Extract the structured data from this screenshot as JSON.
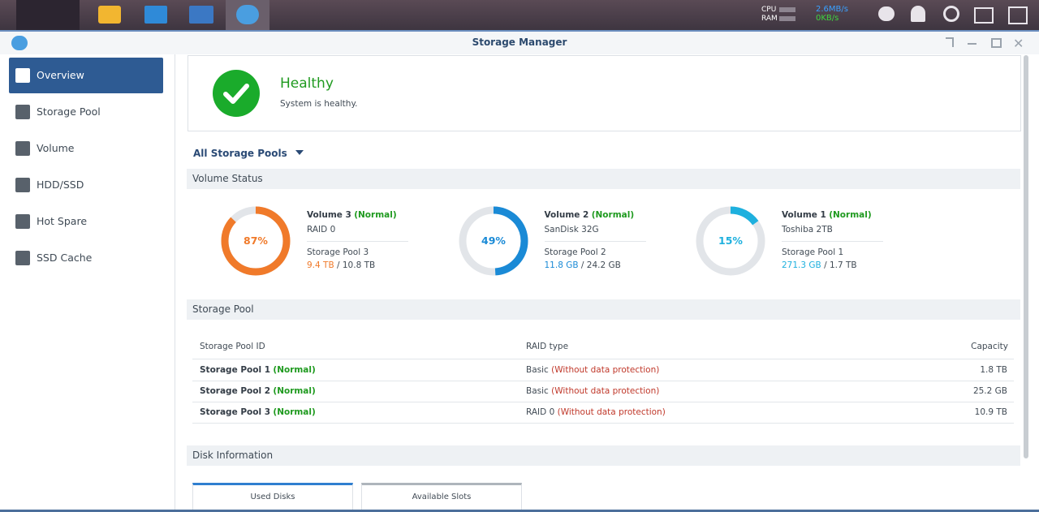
{
  "taskbar": {
    "cpu_label": "CPU",
    "ram_label": "RAM",
    "upload": "2.6MB/s",
    "download": "0KB/s"
  },
  "window": {
    "title": "Storage Manager"
  },
  "sidebar": {
    "items": [
      "Overview",
      "Storage Pool",
      "Volume",
      "HDD/SSD",
      "Hot Spare",
      "SSD Cache"
    ],
    "selected": 0
  },
  "status": {
    "title": "Healthy",
    "message": "System is healthy."
  },
  "filter": "All Storage Pools",
  "sections": {
    "volume_status": "Volume Status",
    "storage_pool": "Storage Pool",
    "disk_information": "Disk Information"
  },
  "volumes": [
    {
      "name": "Volume 3",
      "status": "(Normal)",
      "type": "RAID 0",
      "pool": "Storage Pool 3",
      "used": "9.4 TB",
      "total": "/ 10.8 TB",
      "percent": 87,
      "percent_label": "87%",
      "color": "#f07a2a"
    },
    {
      "name": "Volume 2",
      "status": "(Normal)",
      "type": "SanDisk 32G",
      "pool": "Storage Pool 2",
      "used": "11.8 GB",
      "total": "/ 24.2 GB",
      "percent": 49,
      "percent_label": "49%",
      "color": "#1a8ad6"
    },
    {
      "name": "Volume 1",
      "status": "(Normal)",
      "type": "Toshiba 2TB",
      "pool": "Storage Pool 1",
      "used": "271.3 GB",
      "total": "/ 1.7 TB",
      "percent": 15,
      "percent_label": "15%",
      "color": "#1eb0de"
    }
  ],
  "table": {
    "headers": [
      "Storage Pool ID",
      "RAID type",
      "Capacity"
    ],
    "rows": [
      {
        "id": "Storage Pool 1",
        "status": "(Normal)",
        "raid": "Basic",
        "protection": "(Without data protection)",
        "capacity": "1.8 TB"
      },
      {
        "id": "Storage Pool 2",
        "status": "(Normal)",
        "raid": "Basic",
        "protection": "(Without data protection)",
        "capacity": "25.2 GB"
      },
      {
        "id": "Storage Pool 3",
        "status": "(Normal)",
        "raid": "RAID 0",
        "protection": "(Without data protection)",
        "capacity": "10.9 TB"
      }
    ]
  },
  "disk_tabs": [
    "Used Disks",
    "Available Slots"
  ]
}
